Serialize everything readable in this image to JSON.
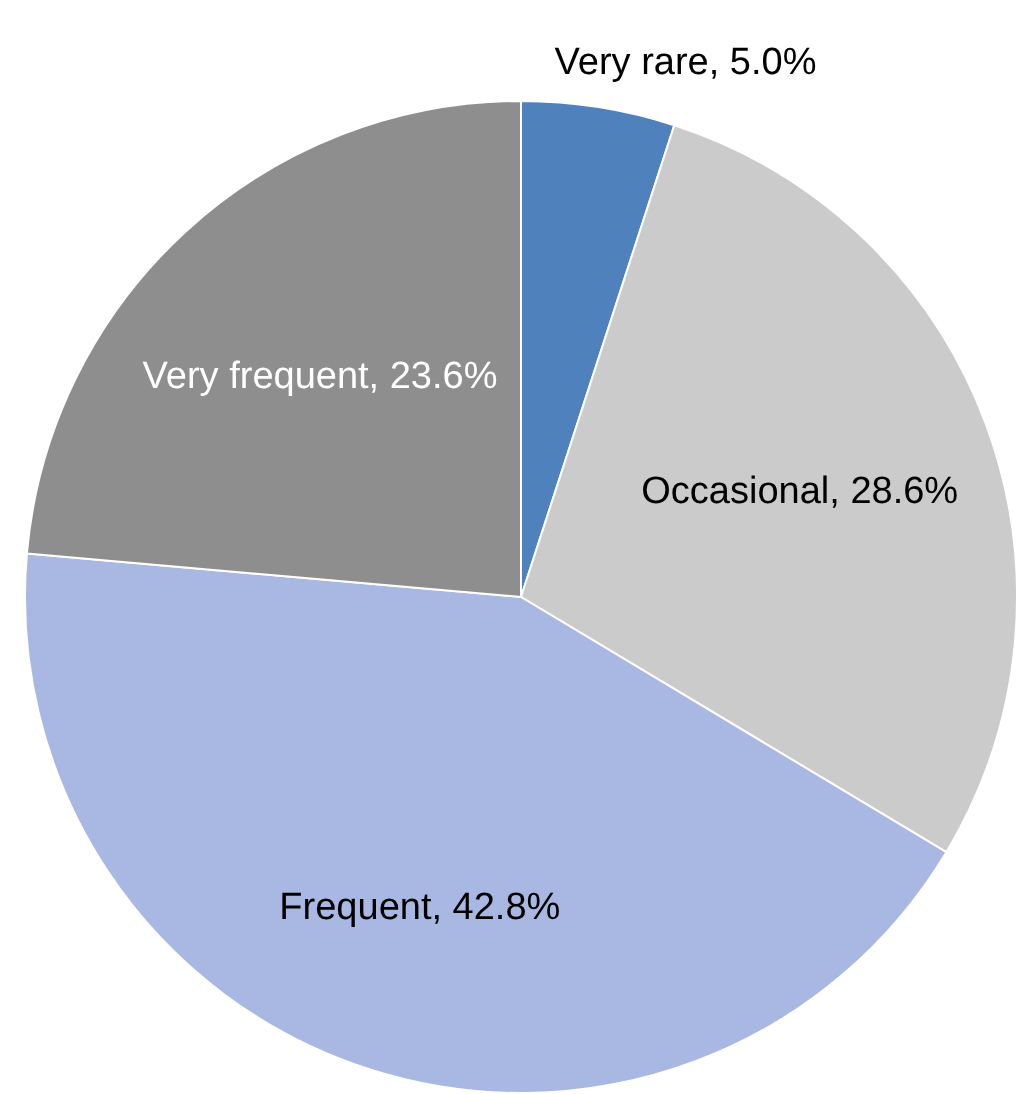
{
  "chart_data": {
    "type": "pie",
    "categories": [
      "Very rare",
      "Occasional",
      "Frequent",
      "Very frequent"
    ],
    "values": [
      5.0,
      28.6,
      42.8,
      23.6
    ],
    "value_labels": [
      "5.0%",
      "28.6%",
      "42.8%",
      "23.6%"
    ],
    "colors": [
      "#4f81bd",
      "#cbcbcb",
      "#a8b8e2",
      "#8e8e8e"
    ],
    "legend": false
  }
}
